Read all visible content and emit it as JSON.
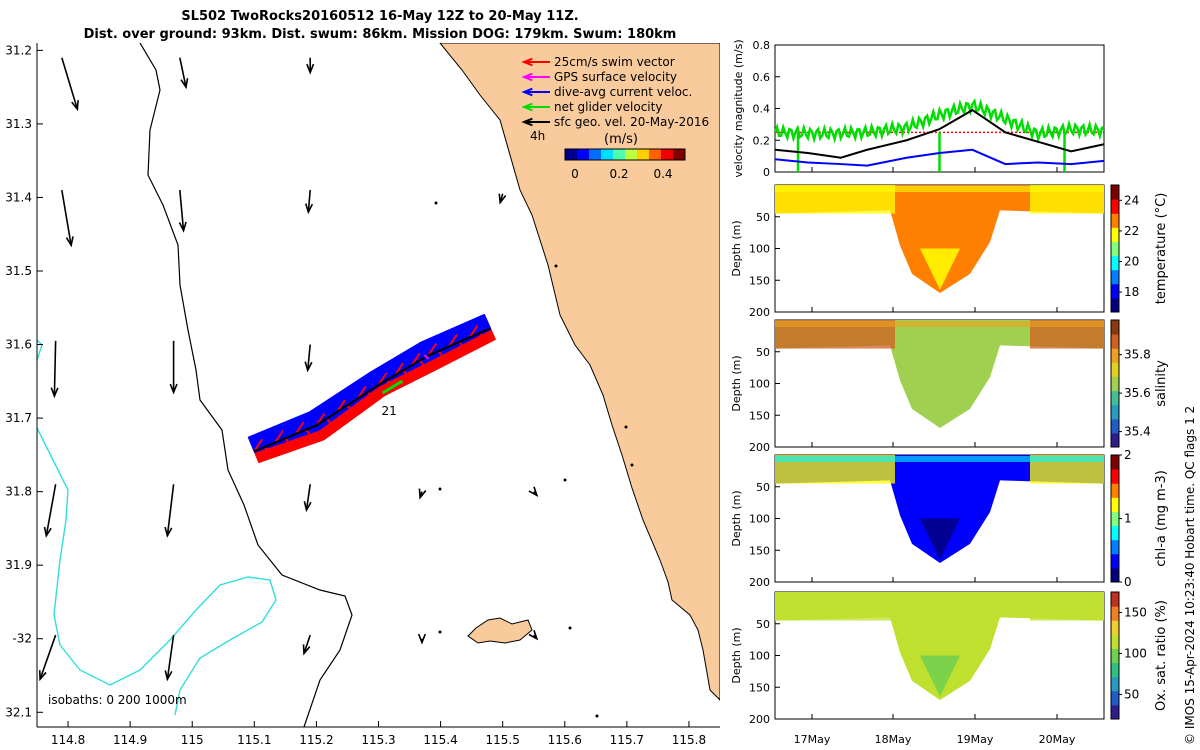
{
  "title_line1": "SL502 TwoRocks20160512 16-May 12Z to 20-May 11Z.",
  "title_line2": "Dist. over ground: 93km. Dist. swum: 86km. Mission DOG: 179km. Swum: 180km",
  "credit": "© IMOS 15-Apr-2024 10:23:40 Hobart time. QC flags 1  2",
  "colors": {
    "land": "#F9CB9C",
    "coast": "#000000",
    "isobath200": "#000000",
    "isobath1000": "#33DDDD",
    "swim": "#FF0000",
    "gps": "#FF00FF",
    "current": "#0000FF",
    "net": "#00DD00",
    "geo": "#000000"
  },
  "map": {
    "xlim": [
      114.75,
      115.85
    ],
    "ylim": [
      -32.12,
      -31.19
    ],
    "xticks": [
      114.8,
      114.9,
      115,
      115.1,
      115.2,
      115.3,
      115.4,
      115.5,
      115.6,
      115.7,
      115.8
    ],
    "xtick_labels": [
      "114.8",
      "114.9",
      "115",
      "115.1",
      "115.2",
      "115.3",
      "115.4",
      "115.5",
      "115.6",
      "115.7",
      "115.8"
    ],
    "yticks": [
      -31.2,
      -31.3,
      -31.4,
      -31.5,
      -31.6,
      -31.7,
      -31.8,
      -31.9,
      -32,
      -32.1
    ],
    "ytick_labels": [
      "31.2",
      "31.3",
      "31.4",
      "31.5",
      "31.6",
      "31.7",
      "31.8",
      "31.9",
      "-32",
      "32.1"
    ],
    "legend": [
      {
        "label": "25cm/s swim vector",
        "color": "#FF0000"
      },
      {
        "label": "GPS surface velocity",
        "color": "#FF00FF"
      },
      {
        "label": "dive-avg current veloc.",
        "color": "#0000FF"
      },
      {
        "label": "net glider velocity",
        "color": "#00DD00"
      },
      {
        "label": "sfc geo. vel. 20-May-2016",
        "color": "#000000"
      }
    ],
    "time_label": "4h",
    "colorbar_unit": "(m/s)",
    "colorbar_ticks": [
      "0",
      "0.2",
      "0.4"
    ],
    "day_label": "21",
    "isobaths_label": "isobaths: 0   200  1000m",
    "track": [
      [
        115.1,
        -31.745
      ],
      [
        115.2,
        -31.71
      ],
      [
        115.3,
        -31.655
      ],
      [
        115.38,
        -31.615
      ],
      [
        115.48,
        -31.578
      ]
    ],
    "geo_arrows": [
      [
        114.79,
        -31.21,
        0.025,
        -0.07
      ],
      [
        114.98,
        -31.21,
        0.01,
        -0.04
      ],
      [
        115.19,
        -31.21,
        0.0,
        -0.02
      ],
      [
        114.79,
        -31.39,
        0.015,
        -0.075
      ],
      [
        114.98,
        -31.39,
        0.006,
        -0.055
      ],
      [
        115.19,
        -31.39,
        -0.003,
        -0.03
      ],
      [
        115.5,
        -31.395,
        -0.004,
        -0.012
      ],
      [
        114.78,
        -31.595,
        -0.002,
        -0.075
      ],
      [
        114.97,
        -31.595,
        0.0,
        -0.07
      ],
      [
        115.19,
        -31.6,
        -0.004,
        -0.035
      ],
      [
        114.78,
        -31.79,
        -0.015,
        -0.07
      ],
      [
        114.97,
        -31.79,
        -0.01,
        -0.07
      ],
      [
        115.19,
        -31.79,
        -0.006,
        -0.035
      ],
      [
        114.78,
        -31.995,
        -0.025,
        -0.06
      ],
      [
        114.97,
        -31.995,
        -0.01,
        -0.06
      ],
      [
        115.19,
        -31.995,
        -0.01,
        -0.025
      ],
      [
        115.37,
        -31.8,
        -0.003,
        -0.008
      ],
      [
        115.55,
        -31.8,
        0.005,
        -0.005
      ],
      [
        115.37,
        -32.0,
        0.0,
        -0.005
      ],
      [
        115.55,
        -31.995,
        0.005,
        -0.005
      ]
    ]
  },
  "velocity": {
    "ylabel": "velocity magnitude (m/s)",
    "ylim": [
      0,
      0.8
    ],
    "yticks": [
      "0",
      "0.2",
      "0.4",
      "0.6",
      "0.8"
    ],
    "swim_level": 0.25,
    "geo": [
      [
        0,
        0.14
      ],
      [
        0.1,
        0.12
      ],
      [
        0.2,
        0.09
      ],
      [
        0.28,
        0.14
      ],
      [
        0.4,
        0.2
      ],
      [
        0.5,
        0.27
      ],
      [
        0.6,
        0.39
      ],
      [
        0.7,
        0.25
      ],
      [
        0.8,
        0.19
      ],
      [
        0.9,
        0.13
      ],
      [
        1.0,
        0.175
      ]
    ],
    "current": [
      [
        0,
        0.08
      ],
      [
        0.1,
        0.06
      ],
      [
        0.2,
        0.05
      ],
      [
        0.28,
        0.04
      ],
      [
        0.4,
        0.09
      ],
      [
        0.5,
        0.12
      ],
      [
        0.6,
        0.14
      ],
      [
        0.7,
        0.05
      ],
      [
        0.8,
        0.06
      ],
      [
        0.9,
        0.05
      ],
      [
        1.0,
        0.07
      ]
    ],
    "net": [
      [
        0,
        0.25
      ],
      [
        0.15,
        0.24
      ],
      [
        0.28,
        0.25
      ],
      [
        0.4,
        0.28
      ],
      [
        0.5,
        0.36
      ],
      [
        0.6,
        0.42
      ],
      [
        0.65,
        0.38
      ],
      [
        0.8,
        0.24
      ],
      [
        0.9,
        0.27
      ],
      [
        1.0,
        0.26
      ]
    ]
  },
  "sections": [
    {
      "label": "temperature (°C)",
      "ticks": [
        "24",
        "22",
        "20",
        "18"
      ],
      "cmin": 16.7,
      "cmax": 25.0,
      "tickvals": [
        24,
        22,
        20,
        18
      ],
      "shallow": 22.0,
      "mid": 22.5,
      "deep": 21.5,
      "edge": 22.0
    },
    {
      "label": "salinity",
      "ticks": [
        "35.8",
        "35.6",
        "35.4"
      ],
      "cmin": 35.32,
      "cmax": 35.98,
      "tickvals": [
        35.8,
        35.6,
        35.4
      ],
      "shallow": 35.82,
      "mid": 35.68,
      "deep": 35.68,
      "edge": 35.86
    },
    {
      "label": "chl-a (mg m-3)",
      "ticks": [
        "2",
        "1",
        "0"
      ],
      "cmin": 0.0,
      "cmax": 2.0,
      "tickvals": [
        2,
        1,
        0
      ],
      "shallow": 0.7,
      "mid": 0.3,
      "deep": 0.2,
      "edge": 1.3
    },
    {
      "label": "Ox. sat. ratio (%)",
      "ticks": [
        "150",
        "100",
        "50"
      ],
      "cmin": 20,
      "cmax": 175,
      "tickvals": [
        150,
        100,
        50
      ],
      "shallow": 108,
      "mid": 108,
      "deep": 100,
      "edge": 110
    }
  ],
  "section_ylabel": "Depth (m)",
  "section_yticks": [
    "50",
    "100",
    "150",
    "200"
  ],
  "time_axis": [
    "17May",
    "18May",
    "19May",
    "20May"
  ]
}
